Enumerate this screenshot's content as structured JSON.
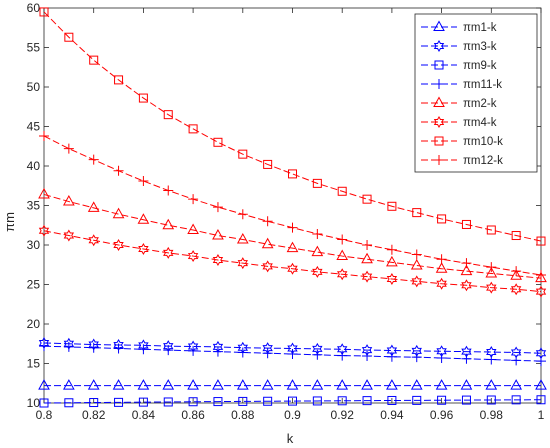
{
  "chart_data": {
    "type": "line",
    "xlabel": "k",
    "ylabel": "πm",
    "xlim": [
      0.8,
      1.0
    ],
    "ylim": [
      10,
      60
    ],
    "grid": false,
    "legend_position": "top-right",
    "x": [
      0.8,
      0.81,
      0.82,
      0.83,
      0.84,
      0.85,
      0.86,
      0.87,
      0.88,
      0.89,
      0.9,
      0.91,
      0.92,
      0.93,
      0.94,
      0.95,
      0.96,
      0.97,
      0.98,
      0.99,
      1.0
    ],
    "xticks": [
      0.8,
      0.82,
      0.84,
      0.86,
      0.88,
      0.9,
      0.92,
      0.94,
      0.96,
      0.98,
      1.0
    ],
    "xtick_labels": [
      "0.8",
      "0.82",
      "0.84",
      "0.86",
      "0.88",
      "0.9",
      "0.92",
      "0.94",
      "0.96",
      "0.98",
      "1"
    ],
    "yticks": [
      10,
      15,
      20,
      25,
      30,
      35,
      40,
      45,
      50,
      55,
      60
    ],
    "ytick_labels": [
      "10",
      "15",
      "20",
      "25",
      "30",
      "35",
      "40",
      "45",
      "50",
      "55",
      "60"
    ],
    "series": [
      {
        "name": "πm1-k",
        "color": "#0000ff",
        "marker": "triangle",
        "values": [
          12.2,
          12.2,
          12.2,
          12.2,
          12.2,
          12.2,
          12.2,
          12.2,
          12.2,
          12.2,
          12.2,
          12.2,
          12.2,
          12.2,
          12.2,
          12.2,
          12.2,
          12.2,
          12.2,
          12.2,
          12.2
        ]
      },
      {
        "name": "πm3-k",
        "color": "#0000ff",
        "marker": "hexagram",
        "values": [
          17.6,
          17.5,
          17.4,
          17.35,
          17.3,
          17.2,
          17.15,
          17.1,
          17.0,
          16.95,
          16.9,
          16.85,
          16.8,
          16.7,
          16.65,
          16.6,
          16.55,
          16.5,
          16.45,
          16.4,
          16.3
        ]
      },
      {
        "name": "πm9-k",
        "color": "#0000ff",
        "marker": "square",
        "values": [
          10.0,
          10.03,
          10.06,
          10.08,
          10.11,
          10.13,
          10.16,
          10.18,
          10.2,
          10.22,
          10.24,
          10.26,
          10.28,
          10.3,
          10.32,
          10.33,
          10.35,
          10.37,
          10.38,
          10.4,
          10.41
        ]
      },
      {
        "name": "πm11-k",
        "color": "#0000ff",
        "marker": "plus",
        "values": [
          17.2,
          17.1,
          17.0,
          16.9,
          16.8,
          16.7,
          16.6,
          16.5,
          16.4,
          16.3,
          16.2,
          16.1,
          16.0,
          15.95,
          15.85,
          15.8,
          15.7,
          15.6,
          15.5,
          15.4,
          15.3
        ]
      },
      {
        "name": "πm2-k",
        "color": "#ff0000",
        "marker": "triangle",
        "values": [
          36.4,
          35.5,
          34.7,
          33.9,
          33.2,
          32.5,
          31.9,
          31.2,
          30.7,
          30.1,
          29.6,
          29.1,
          28.6,
          28.2,
          27.8,
          27.4,
          27.0,
          26.7,
          26.4,
          26.1,
          25.8
        ]
      },
      {
        "name": "πm4-k",
        "color": "#ff0000",
        "marker": "hexagram",
        "values": [
          31.8,
          31.2,
          30.6,
          30.0,
          29.5,
          29.0,
          28.6,
          28.1,
          27.7,
          27.3,
          27.0,
          26.6,
          26.3,
          26.0,
          25.7,
          25.4,
          25.1,
          24.9,
          24.6,
          24.4,
          24.1
        ]
      },
      {
        "name": "πm10-k",
        "color": "#ff0000",
        "marker": "square",
        "values": [
          59.5,
          56.3,
          53.4,
          50.9,
          48.6,
          46.5,
          44.7,
          43.0,
          41.5,
          40.2,
          39.0,
          37.8,
          36.8,
          35.8,
          34.9,
          34.1,
          33.3,
          32.6,
          31.9,
          31.2,
          30.5
        ]
      },
      {
        "name": "πm12-k",
        "color": "#ff0000",
        "marker": "plus",
        "values": [
          43.8,
          42.2,
          40.8,
          39.4,
          38.1,
          36.9,
          35.8,
          34.8,
          33.9,
          33.0,
          32.2,
          31.4,
          30.7,
          30.0,
          29.4,
          28.8,
          28.2,
          27.7,
          27.2,
          26.7,
          26.2
        ]
      }
    ]
  }
}
